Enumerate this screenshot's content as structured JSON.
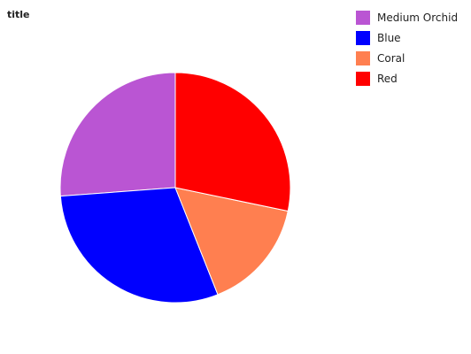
{
  "chart_data": {
    "type": "pie",
    "title": "title",
    "categories": [
      "Medium Orchid",
      "Blue",
      "Coral",
      "Red"
    ],
    "values": [
      25,
      28.5,
      15,
      27
    ],
    "colors": [
      "#ba55d3",
      "#0000ff",
      "#ff7f50",
      "#ff0000"
    ],
    "legend_position": "right",
    "start_angle_deg": 90,
    "direction": "counterclockwise"
  }
}
